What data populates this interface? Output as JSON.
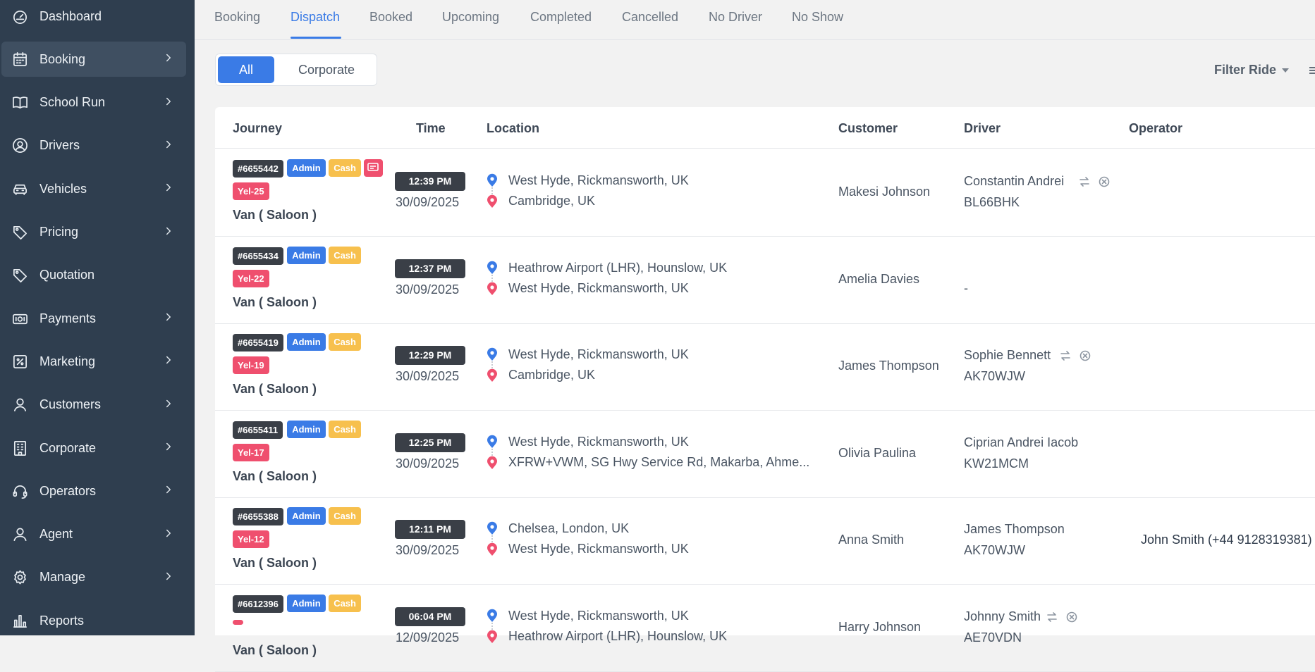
{
  "sidebar": {
    "items": [
      {
        "label": "Dashboard",
        "icon": "dashboard-icon",
        "chevron": false,
        "active": false
      },
      {
        "label": "Booking",
        "icon": "calendar-icon",
        "chevron": true,
        "active": true
      },
      {
        "label": "School Run",
        "icon": "book-icon",
        "chevron": true,
        "active": false
      },
      {
        "label": "Drivers",
        "icon": "user-circle-icon",
        "chevron": true,
        "active": false
      },
      {
        "label": "Vehicles",
        "icon": "car-icon",
        "chevron": true,
        "active": false
      },
      {
        "label": "Pricing",
        "icon": "tag-icon",
        "chevron": true,
        "active": false
      },
      {
        "label": "Quotation",
        "icon": "tag-icon",
        "chevron": false,
        "active": false
      },
      {
        "label": "Payments",
        "icon": "money-icon",
        "chevron": true,
        "active": false
      },
      {
        "label": "Marketing",
        "icon": "percent-icon",
        "chevron": true,
        "active": false
      },
      {
        "label": "Customers",
        "icon": "user-icon",
        "chevron": true,
        "active": false
      },
      {
        "label": "Corporate",
        "icon": "building-icon",
        "chevron": true,
        "active": false
      },
      {
        "label": "Operators",
        "icon": "headset-icon",
        "chevron": true,
        "active": false
      },
      {
        "label": "Agent",
        "icon": "agent-icon",
        "chevron": true,
        "active": false
      },
      {
        "label": "Manage",
        "icon": "gear-icon",
        "chevron": true,
        "active": false
      },
      {
        "label": "Reports",
        "icon": "bar-chart-icon",
        "chevron": false,
        "active": false
      }
    ]
  },
  "tabs": [
    "Booking",
    "Dispatch",
    "Booked",
    "Upcoming",
    "Completed",
    "Cancelled",
    "No Driver",
    "No Show"
  ],
  "active_tab": "Dispatch",
  "toggle": {
    "all": "All",
    "corporate": "Corporate"
  },
  "filter": {
    "label": "Filter Ride"
  },
  "table": {
    "headers": {
      "journey": "Journey",
      "time": "Time",
      "location": "Location",
      "customer": "Customer",
      "driver": "Driver",
      "operator": "Operator"
    },
    "rows": [
      {
        "id": "#6655442",
        "admin": "Admin",
        "cash": "Cash",
        "message": true,
        "yel": "Yel-25",
        "vehicle": "Van ( Saloon )",
        "time": "12:39 PM",
        "date": "30/09/2025",
        "pickup": "West Hyde, Rickmansworth, UK",
        "dropoff": "Cambridge, UK",
        "customer": "Makesi Johnson",
        "driver": "Constantin Andrei",
        "plate": "BL66BHK",
        "driver_icons": true,
        "operator": ""
      },
      {
        "id": "#6655434",
        "admin": "Admin",
        "cash": "Cash",
        "message": false,
        "yel": "Yel-22",
        "vehicle": "Van ( Saloon )",
        "time": "12:37 PM",
        "date": "30/09/2025",
        "pickup": "Heathrow Airport (LHR), Hounslow, UK",
        "dropoff": "West Hyde, Rickmansworth, UK",
        "customer": "Amelia Davies",
        "driver": "",
        "plate": "-",
        "driver_icons": false,
        "operator": ""
      },
      {
        "id": "#6655419",
        "admin": "Admin",
        "cash": "Cash",
        "message": false,
        "yel": "Yel-19",
        "vehicle": "Van ( Saloon )",
        "time": "12:29 PM",
        "date": "30/09/2025",
        "pickup": "West Hyde, Rickmansworth, UK",
        "dropoff": "Cambridge, UK",
        "customer": "James Thompson",
        "driver": "Sophie Bennett",
        "plate": "AK70WJW",
        "driver_icons": true,
        "operator": ""
      },
      {
        "id": "#6655411",
        "admin": "Admin",
        "cash": "Cash",
        "message": false,
        "yel": "Yel-17",
        "vehicle": "Van ( Saloon )",
        "time": "12:25 PM",
        "date": "30/09/2025",
        "pickup": "West Hyde, Rickmansworth, UK",
        "dropoff": "XFRW+VWM, SG Hwy Service Rd, Makarba, Ahme...",
        "customer": "Olivia Paulina",
        "driver": "Ciprian Andrei Iacob",
        "plate": "KW21MCM",
        "driver_icons": false,
        "operator": ""
      },
      {
        "id": "#6655388",
        "admin": "Admin",
        "cash": "Cash",
        "message": false,
        "yel": "Yel-12",
        "vehicle": "Van ( Saloon )",
        "time": "12:11 PM",
        "date": "30/09/2025",
        "pickup": "Chelsea, London, UK",
        "dropoff": "West Hyde, Rickmansworth, UK",
        "customer": "Anna Smith",
        "driver": "James Thompson",
        "plate": "AK70WJW",
        "driver_icons": false,
        "operator": "John Smith (+44 9128319381)"
      },
      {
        "id": "#6612396",
        "admin": "Admin",
        "cash": "Cash",
        "message": false,
        "yel": "",
        "vehicle": "Van ( Saloon )",
        "time": "06:04 PM",
        "date": "12/09/2025",
        "pickup": "West Hyde, Rickmansworth, UK",
        "dropoff": "Heathrow Airport (LHR), Hounslow, UK",
        "customer": "Harry Johnson",
        "driver": "Johnny Smith",
        "plate": "AE70VDN",
        "driver_icons": true,
        "operator": ""
      }
    ]
  },
  "colors": {
    "sidebar": "#2f3e4f",
    "accent": "#3a7be6",
    "badge_dark": "#3a3f47",
    "cash": "#f7c04d",
    "yel": "#ef4f6e",
    "pin_pickup": "#3a7be6",
    "pin_dropoff": "#ef4f6e"
  }
}
